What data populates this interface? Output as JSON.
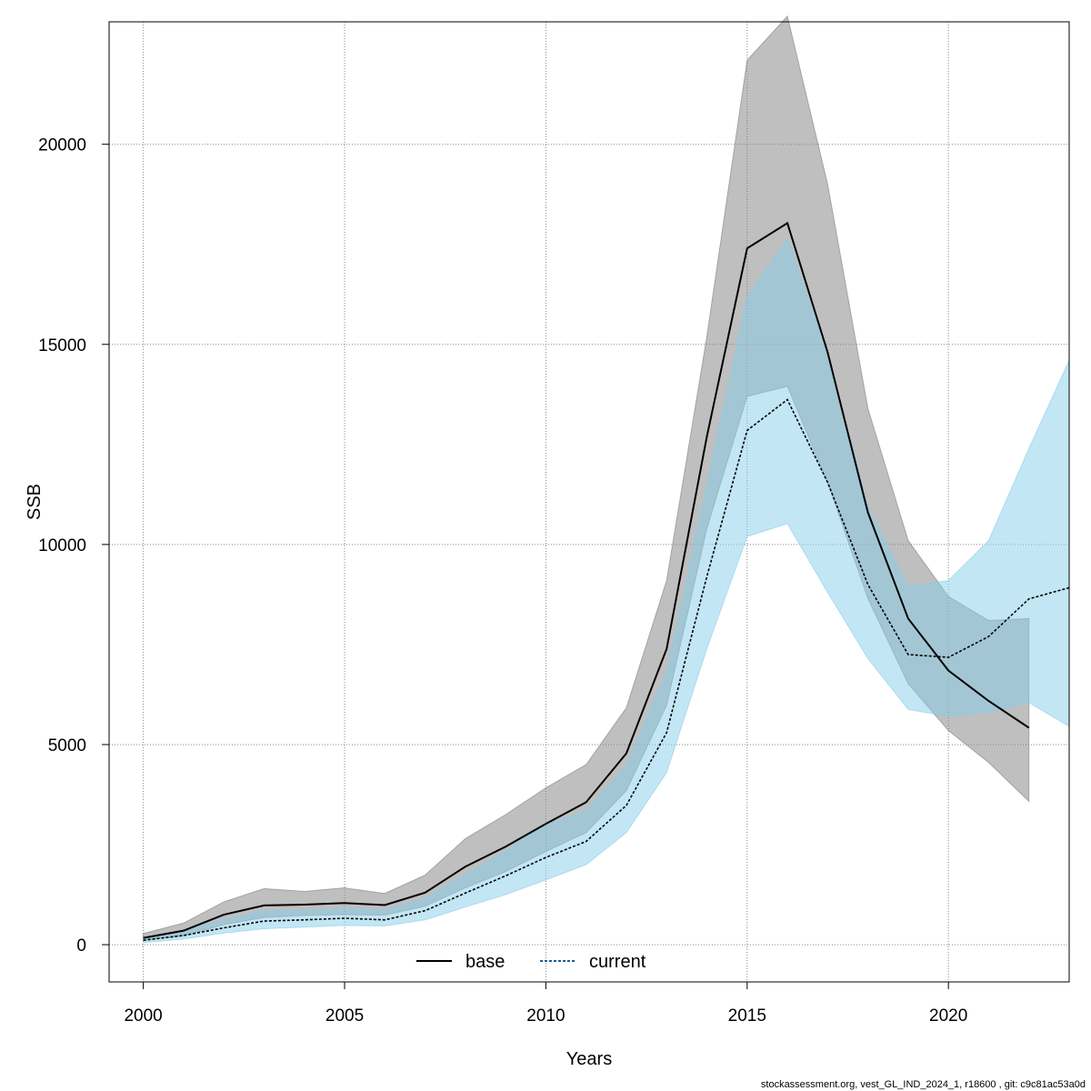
{
  "chart_data": {
    "type": "line",
    "xlabel": "Years",
    "ylabel": "SSB",
    "xlim": [
      1999.15,
      2023
    ],
    "ylim": [
      -930,
      23060
    ],
    "xticks": [
      2000,
      2005,
      2010,
      2015,
      2020
    ],
    "yticks": [
      0,
      5000,
      10000,
      15000,
      20000
    ],
    "xtick_labels": [
      "2000",
      "2005",
      "2010",
      "2015",
      "2020"
    ],
    "ytick_labels": [
      "0",
      "5000",
      "10000",
      "15000",
      "20000"
    ],
    "grid": true,
    "legend_position": "bottom",
    "series": [
      {
        "name": "base",
        "line_style": "solid",
        "color": "#000000",
        "band_color": "#808080",
        "x": [
          2000,
          2001,
          2002,
          2003,
          2004,
          2005,
          2006,
          2007,
          2008,
          2009,
          2010,
          2011,
          2012,
          2013,
          2014,
          2015,
          2016,
          2017,
          2018,
          2019,
          2020,
          2021,
          2022
        ],
        "values": [
          170,
          350,
          750,
          980,
          1000,
          1040,
          990,
          1300,
          1950,
          2450,
          3020,
          3560,
          4780,
          7390,
          12700,
          17400,
          18030,
          14800,
          10800,
          8150,
          6850,
          6090,
          5420
        ],
        "upper": [
          280,
          540,
          1070,
          1400,
          1330,
          1420,
          1280,
          1740,
          2650,
          3250,
          3920,
          4500,
          5920,
          9100,
          15200,
          22100,
          23200,
          19000,
          13400,
          10100,
          8700,
          8100,
          8150
        ],
        "lower": [
          110,
          220,
          500,
          680,
          730,
          750,
          740,
          960,
          1420,
          1830,
          2330,
          2800,
          3850,
          5980,
          10400,
          13700,
          13950,
          11550,
          8650,
          6520,
          5350,
          4550,
          3580
        ]
      },
      {
        "name": "current",
        "line_style": "dotted",
        "color": "#000000",
        "band_color": "#87CEEB",
        "x": [
          2000,
          2001,
          2002,
          2003,
          2004,
          2005,
          2006,
          2007,
          2008,
          2009,
          2010,
          2011,
          2012,
          2013,
          2014,
          2015,
          2016,
          2017,
          2018,
          2019,
          2020,
          2021,
          2022,
          2023
        ],
        "values": [
          110,
          230,
          420,
          590,
          620,
          660,
          620,
          850,
          1290,
          1720,
          2180,
          2580,
          3480,
          5300,
          9200,
          12850,
          13620,
          11550,
          9000,
          7250,
          7180,
          7700,
          8640,
          8920
        ],
        "upper": [
          190,
          360,
          620,
          860,
          850,
          910,
          870,
          1170,
          1750,
          2350,
          3000,
          3350,
          4500,
          6820,
          11500,
          16200,
          17650,
          14750,
          10950,
          8950,
          9100,
          10100,
          12400,
          14600
        ],
        "lower": [
          50,
          140,
          290,
          400,
          440,
          480,
          470,
          620,
          940,
          1250,
          1620,
          2000,
          2800,
          4300,
          7400,
          10200,
          10520,
          8800,
          7150,
          5880,
          5700,
          5820,
          6050,
          5450
        ]
      }
    ]
  },
  "footer": "stockassessment.org, vest_GL_IND_2024_1, r18600 , git: c9c81ac53a0d"
}
